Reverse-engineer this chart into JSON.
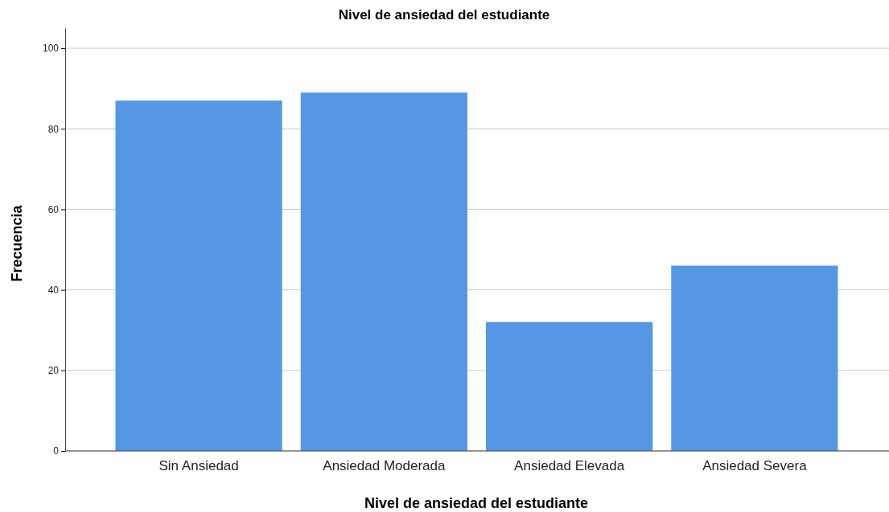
{
  "chart_data": {
    "type": "bar",
    "title": "Nivel de ansiedad del estudiante",
    "xlabel": "Nivel de ansiedad del estudiante",
    "ylabel": "Frecuencia",
    "categories": [
      "Sin Ansiedad",
      "Ansiedad Moderada",
      "Ansiedad Elevada",
      "Ansiedad Severa"
    ],
    "values": [
      87,
      89,
      32,
      46
    ],
    "color": "#5597e5",
    "ylim": [
      0,
      105
    ],
    "yticks": [
      0,
      20,
      40,
      60,
      80,
      100
    ],
    "grid": "y"
  }
}
